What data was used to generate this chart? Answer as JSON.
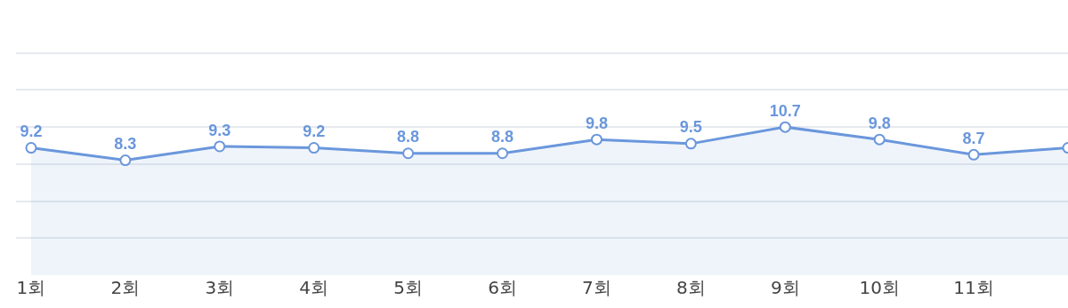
{
  "chart_data": {
    "type": "area",
    "categories": [
      "1회",
      "2회",
      "3회",
      "4회",
      "5회",
      "6회",
      "7회",
      "8회",
      "9회",
      "10회",
      "11회",
      null
    ],
    "values": [
      9.2,
      8.3,
      9.3,
      9.2,
      8.8,
      8.8,
      9.8,
      9.5,
      10.7,
      9.8,
      8.7,
      9.2
    ],
    "value_labels": [
      "9.2",
      "8.3",
      "9.3",
      "9.2",
      "8.8",
      "8.8",
      "9.8",
      "9.5",
      "10.7",
      "9.8",
      "8.7",
      null
    ],
    "color": "#6a97dc",
    "grid": "y",
    "marker": "circle",
    "tick_labels": "x"
  }
}
